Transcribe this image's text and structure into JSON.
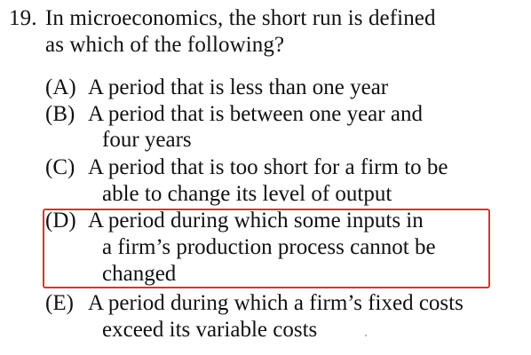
{
  "question": {
    "number": "19.",
    "text_line_1": "In microeconomics, the short run is defined",
    "text_line_2": "as which of the following?"
  },
  "options": [
    {
      "letter": "(A)",
      "lines": [
        "A period that is less than one year"
      ]
    },
    {
      "letter": "(B)",
      "lines": [
        "A period that is between one year and",
        "four years"
      ]
    },
    {
      "letter": "(C)",
      "lines": [
        "A period that is too short for a firm to be",
        "able to change its level of output"
      ]
    },
    {
      "letter": "(D)",
      "lines": [
        "A period during which some inputs in",
        "a firm’s production process cannot be",
        "changed"
      ]
    },
    {
      "letter": "(E)",
      "lines": [
        "A period during which a firm’s fixed costs",
        "exceed its variable costs"
      ]
    }
  ],
  "highlight": {
    "option": "(D)",
    "color": "#d93232"
  }
}
